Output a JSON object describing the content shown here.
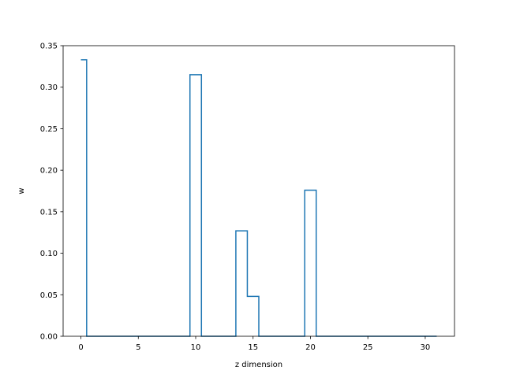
{
  "chart_data": {
    "type": "line",
    "drawstyle": "steps-mid",
    "title": "",
    "xlabel": "z dimension",
    "ylabel": "w",
    "xlim": [
      -1.55,
      32.55
    ],
    "ylim": [
      0,
      0.35
    ],
    "x_ticks": [
      0,
      5,
      10,
      15,
      20,
      25,
      30
    ],
    "y_ticks": [
      0.0,
      0.05,
      0.1,
      0.15,
      0.2,
      0.25,
      0.3,
      0.35
    ],
    "y_tick_labels": [
      "0.00",
      "0.05",
      "0.10",
      "0.15",
      "0.20",
      "0.25",
      "0.30",
      "0.35"
    ],
    "grid": false,
    "legend": false,
    "series": [
      {
        "color": "#1f77b4",
        "x": [
          0,
          1,
          2,
          3,
          4,
          5,
          6,
          7,
          8,
          9,
          10,
          11,
          12,
          13,
          14,
          15,
          16,
          17,
          18,
          19,
          20,
          21,
          22,
          23,
          24,
          25,
          26,
          27,
          28,
          29,
          30,
          31
        ],
        "y": [
          0.333,
          0,
          0,
          0,
          0,
          0,
          0,
          0,
          0,
          0,
          0.315,
          0,
          0,
          0,
          0.127,
          0.048,
          0,
          0,
          0,
          0,
          0.176,
          0,
          0,
          0,
          0,
          0,
          0,
          0,
          0,
          0,
          0,
          0
        ]
      }
    ]
  }
}
